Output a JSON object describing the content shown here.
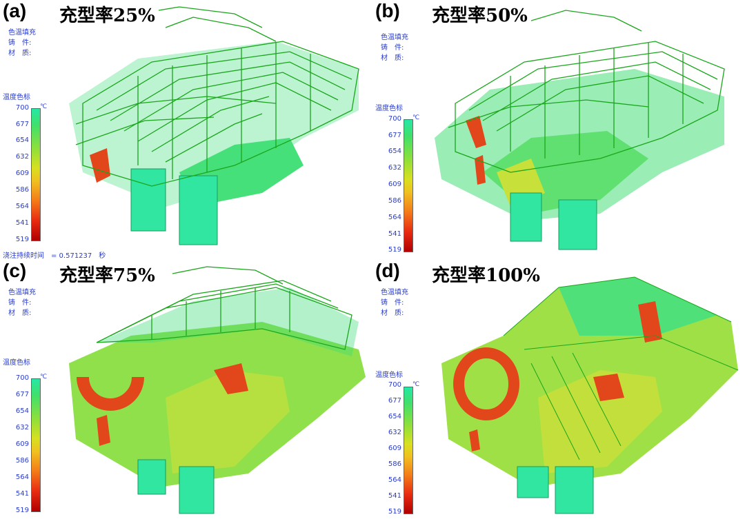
{
  "panels": [
    {
      "letter": "(a)",
      "title": "充型率25%",
      "fill_fraction": 0.25
    },
    {
      "letter": "(b)",
      "title": "充型率50%",
      "fill_fraction": 0.5
    },
    {
      "letter": "(c)",
      "title": "充型率75%",
      "fill_fraction": 0.75
    },
    {
      "letter": "(d)",
      "title": "充型率100%",
      "fill_fraction": 1.0
    }
  ],
  "info": {
    "line1": "色温填充",
    "line2": "铸　件:",
    "line3": "材　质:"
  },
  "scale": {
    "title": "温度色标",
    "unit": "℃",
    "ticks": [
      "700",
      "677",
      "654",
      "632",
      "609",
      "586",
      "564",
      "541",
      "519"
    ]
  },
  "pour_time": "浇注持续时间　= 0.571237　秒",
  "colors": {
    "hot": "#e82a10",
    "cold": "#25e8a5",
    "wire": "#1aa61a",
    "label": "#2a3cc7"
  }
}
